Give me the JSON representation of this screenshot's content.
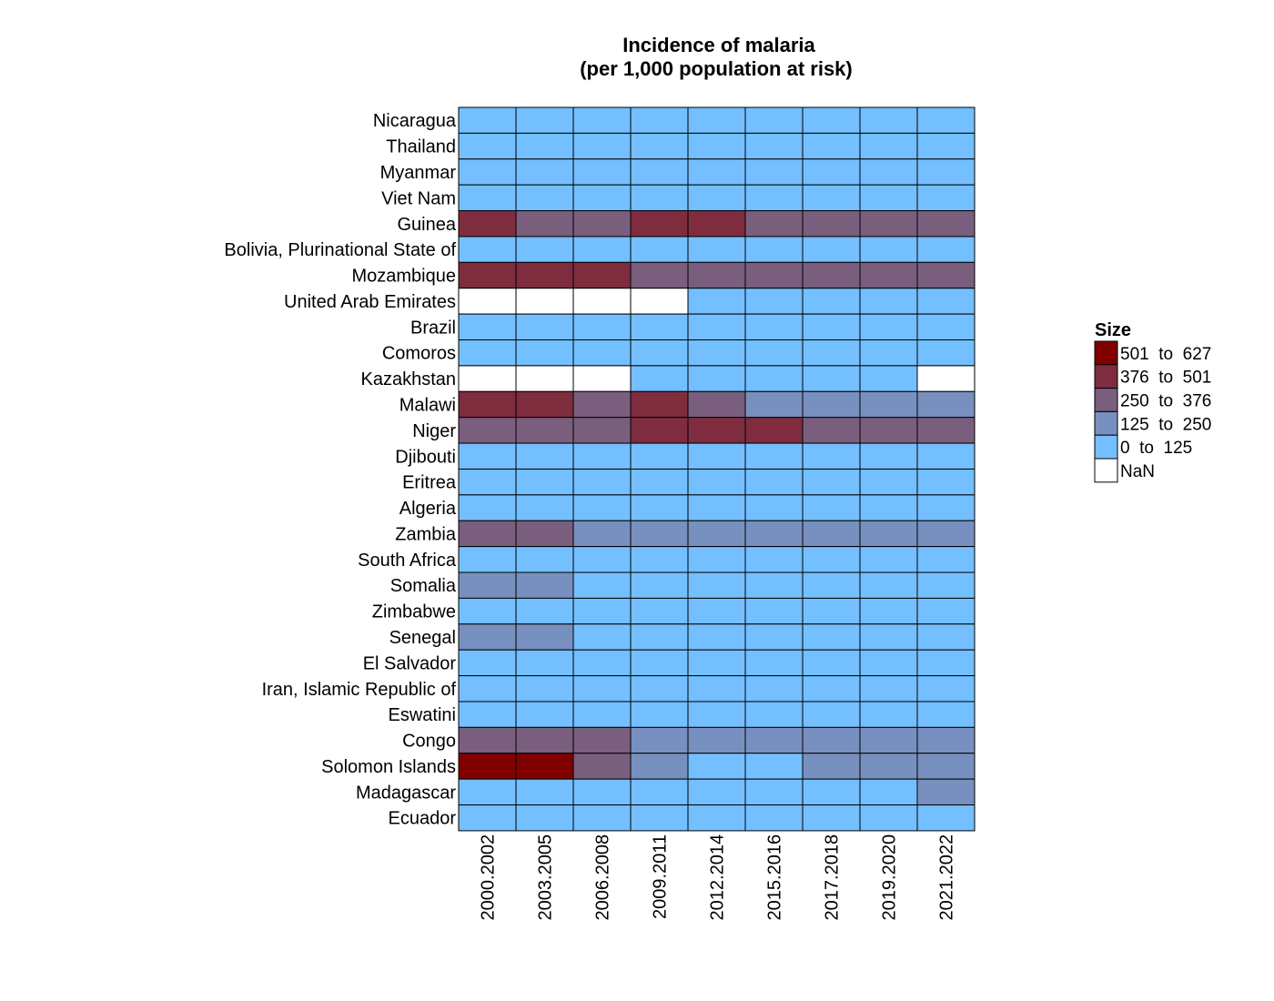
{
  "chart_data": {
    "type": "heatmap",
    "title": "Incidence of malaria",
    "subtitle": "(per 1,000 population at risk)",
    "columns": [
      "2000.2002",
      "2003.2005",
      "2006.2008",
      "2009.2011",
      "2012.2014",
      "2015.2016",
      "2017.2018",
      "2019.2020",
      "2021.2022"
    ],
    "rows": [
      "Nicaragua",
      "Thailand",
      "Myanmar",
      "Viet Nam",
      "Guinea",
      "Bolivia, Plurinational State of",
      "Mozambique",
      "United Arab Emirates",
      "Brazil",
      "Comoros",
      "Kazakhstan",
      "Malawi",
      "Niger",
      "Djibouti",
      "Eritrea",
      "Algeria",
      "Zambia",
      "South Africa",
      "Somalia",
      "Zimbabwe",
      "Senegal",
      "El Salvador",
      "Iran, Islamic Republic of",
      "Eswatini",
      "Congo",
      "Solomon Islands",
      "Madagascar",
      "Ecuador"
    ],
    "bins": [
      {
        "label": "501  to  627",
        "color": "#800000"
      },
      {
        "label": "376  to  501",
        "color": "#7F2C3F"
      },
      {
        "label": "250  to  376",
        "color": "#7A5E7E"
      },
      {
        "label": "125  to  250",
        "color": "#7890BF"
      },
      {
        "label": "0  to  125",
        "color": "#74BFFF"
      },
      {
        "label": "NaN",
        "color": "#FFFFFF"
      }
    ],
    "cell_bins": [
      [
        4,
        4,
        4,
        4,
        4,
        4,
        4,
        4,
        4
      ],
      [
        4,
        4,
        4,
        4,
        4,
        4,
        4,
        4,
        4
      ],
      [
        4,
        4,
        4,
        4,
        4,
        4,
        4,
        4,
        4
      ],
      [
        4,
        4,
        4,
        4,
        4,
        4,
        4,
        4,
        4
      ],
      [
        1,
        2,
        2,
        1,
        1,
        2,
        2,
        2,
        2
      ],
      [
        4,
        4,
        4,
        4,
        4,
        4,
        4,
        4,
        4
      ],
      [
        1,
        1,
        1,
        2,
        2,
        2,
        2,
        2,
        2
      ],
      [
        5,
        5,
        5,
        5,
        4,
        4,
        4,
        4,
        4
      ],
      [
        4,
        4,
        4,
        4,
        4,
        4,
        4,
        4,
        4
      ],
      [
        4,
        4,
        4,
        4,
        4,
        4,
        4,
        4,
        4
      ],
      [
        5,
        5,
        5,
        4,
        4,
        4,
        4,
        4,
        5
      ],
      [
        1,
        1,
        2,
        1,
        2,
        3,
        3,
        3,
        3
      ],
      [
        2,
        2,
        2,
        1,
        1,
        1,
        2,
        2,
        2
      ],
      [
        4,
        4,
        4,
        4,
        4,
        4,
        4,
        4,
        4
      ],
      [
        4,
        4,
        4,
        4,
        4,
        4,
        4,
        4,
        4
      ],
      [
        4,
        4,
        4,
        4,
        4,
        4,
        4,
        4,
        4
      ],
      [
        2,
        2,
        3,
        3,
        3,
        3,
        3,
        3,
        3
      ],
      [
        4,
        4,
        4,
        4,
        4,
        4,
        4,
        4,
        4
      ],
      [
        3,
        3,
        4,
        4,
        4,
        4,
        4,
        4,
        4
      ],
      [
        4,
        4,
        4,
        4,
        4,
        4,
        4,
        4,
        4
      ],
      [
        3,
        3,
        4,
        4,
        4,
        4,
        4,
        4,
        4
      ],
      [
        4,
        4,
        4,
        4,
        4,
        4,
        4,
        4,
        4
      ],
      [
        4,
        4,
        4,
        4,
        4,
        4,
        4,
        4,
        4
      ],
      [
        4,
        4,
        4,
        4,
        4,
        4,
        4,
        4,
        4
      ],
      [
        2,
        2,
        2,
        3,
        3,
        3,
        3,
        3,
        3
      ],
      [
        0,
        0,
        2,
        3,
        4,
        4,
        3,
        3,
        3
      ],
      [
        4,
        4,
        4,
        4,
        4,
        4,
        4,
        4,
        3
      ],
      [
        4,
        4,
        4,
        4,
        4,
        4,
        4,
        4,
        4
      ]
    ],
    "legend": {
      "title": "Size",
      "position": "right"
    },
    "grid": true
  }
}
